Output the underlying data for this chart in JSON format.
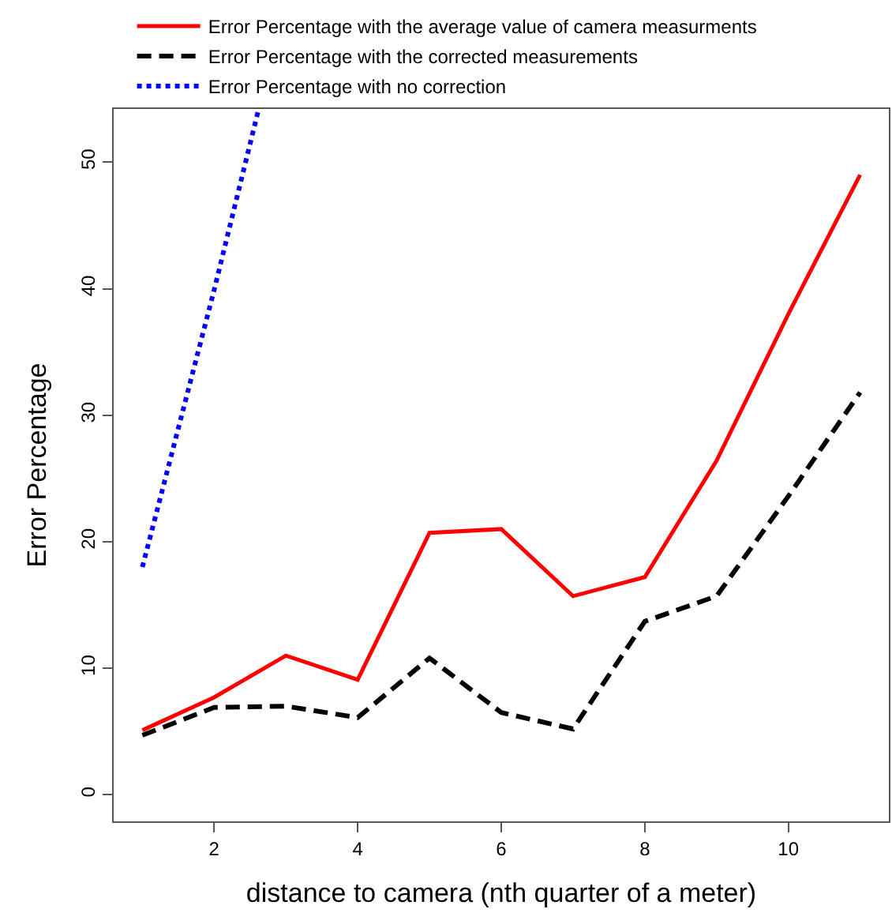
{
  "chart_data": {
    "type": "line",
    "xlabel": "distance to camera (nth quarter of a meter)",
    "ylabel": "Error Percentage",
    "x": [
      1,
      2,
      3,
      4,
      5,
      6,
      7,
      8,
      9,
      10,
      11
    ],
    "series": [
      {
        "name": "Error Percentage with the average value of camera measurments",
        "color": "#ff0000",
        "line_style": "solid",
        "values": [
          5.1,
          7.7,
          11.0,
          9.1,
          20.7,
          21.0,
          15.7,
          17.2,
          26.4,
          38.0,
          49.0
        ]
      },
      {
        "name": "Error Percentage with the corrected measurements",
        "color": "#000000",
        "line_style": "dashed",
        "values": [
          4.7,
          6.9,
          7.0,
          6.1,
          10.8,
          6.5,
          5.2,
          13.7,
          15.7,
          23.6,
          31.8
        ]
      },
      {
        "name": "Error Percentage with no correction",
        "color": "#0000ff",
        "line_style": "dotted",
        "x": [
          1,
          2,
          2.62
        ],
        "values": [
          18.0,
          39.9,
          54.2
        ]
      }
    ],
    "xlim": [
      0.6,
      11.4
    ],
    "ylim": [
      -2.1,
      54.2
    ],
    "xticks": [
      2,
      4,
      6,
      8,
      10
    ],
    "yticks": [
      0,
      10,
      20,
      30,
      40,
      50
    ],
    "legend": "top",
    "marker": "none"
  }
}
